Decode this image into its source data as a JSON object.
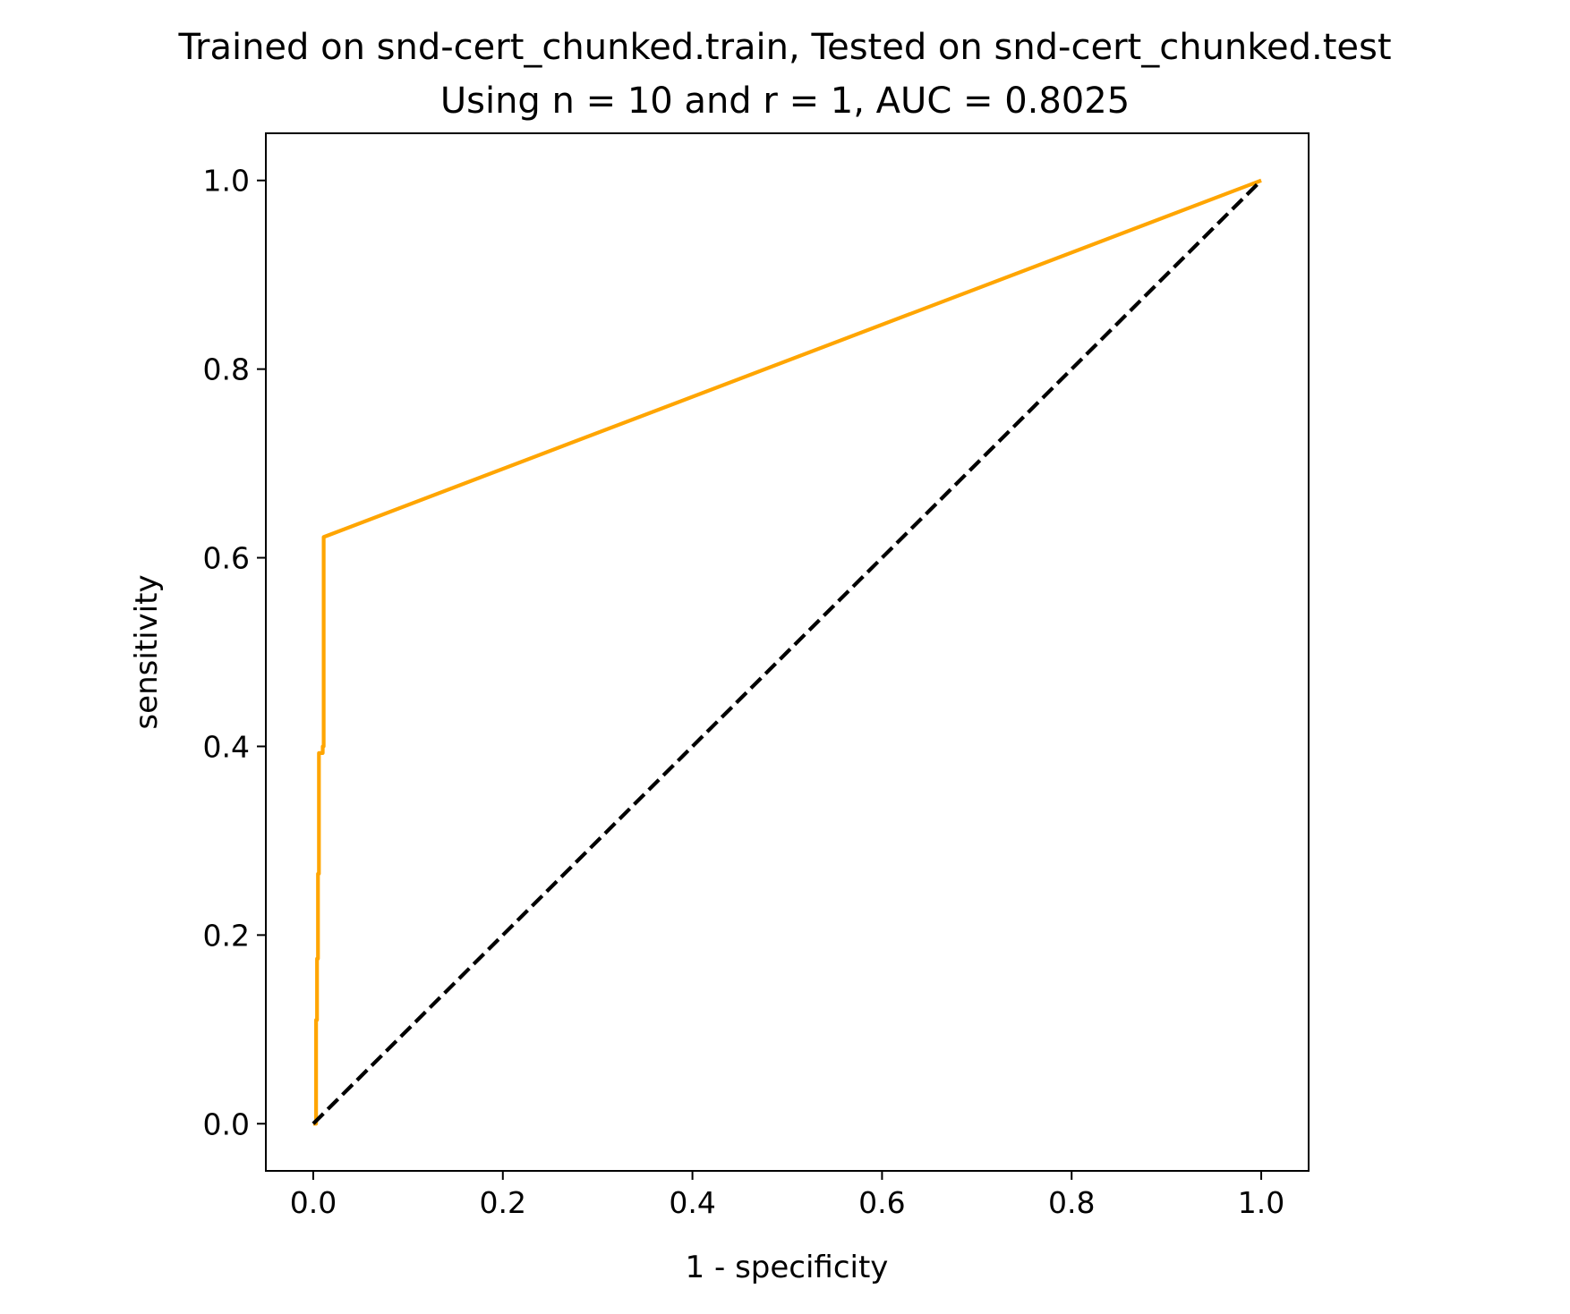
{
  "chart_data": {
    "type": "line",
    "title": "Trained on snd-cert_chunked.train, Tested on snd-cert_chunked.test",
    "subtitle": "Using n = 10 and r = 1, AUC = 0.8025",
    "xlabel": "1 - specificity",
    "ylabel": "sensitivity",
    "xlim": [
      -0.05,
      1.05
    ],
    "ylim": [
      -0.05,
      1.05
    ],
    "xticks": [
      0.0,
      0.2,
      0.4,
      0.6,
      0.8,
      1.0
    ],
    "yticks": [
      0.0,
      0.2,
      0.4,
      0.6,
      0.8,
      1.0
    ],
    "tick_labels_x": [
      "0.0",
      "0.2",
      "0.4",
      "0.6",
      "0.8",
      "1.0"
    ],
    "tick_labels_y": [
      "0.0",
      "0.2",
      "0.4",
      "0.6",
      "0.8",
      "1.0"
    ],
    "grid": false,
    "series": [
      {
        "color": "#ffa500",
        "style": "solid",
        "x": [
          0.0,
          0.003,
          0.003,
          0.004,
          0.004,
          0.005,
          0.005,
          0.006,
          0.006,
          0.01,
          0.01,
          0.011,
          0.011,
          1.0
        ],
        "y": [
          0.0,
          0.0,
          0.11,
          0.11,
          0.175,
          0.175,
          0.265,
          0.265,
          0.393,
          0.393,
          0.4,
          0.4,
          0.622,
          1.0
        ]
      },
      {
        "color": "#000000",
        "style": "dashed",
        "x": [
          0.0,
          1.0
        ],
        "y": [
          0.0,
          1.0
        ]
      }
    ]
  }
}
